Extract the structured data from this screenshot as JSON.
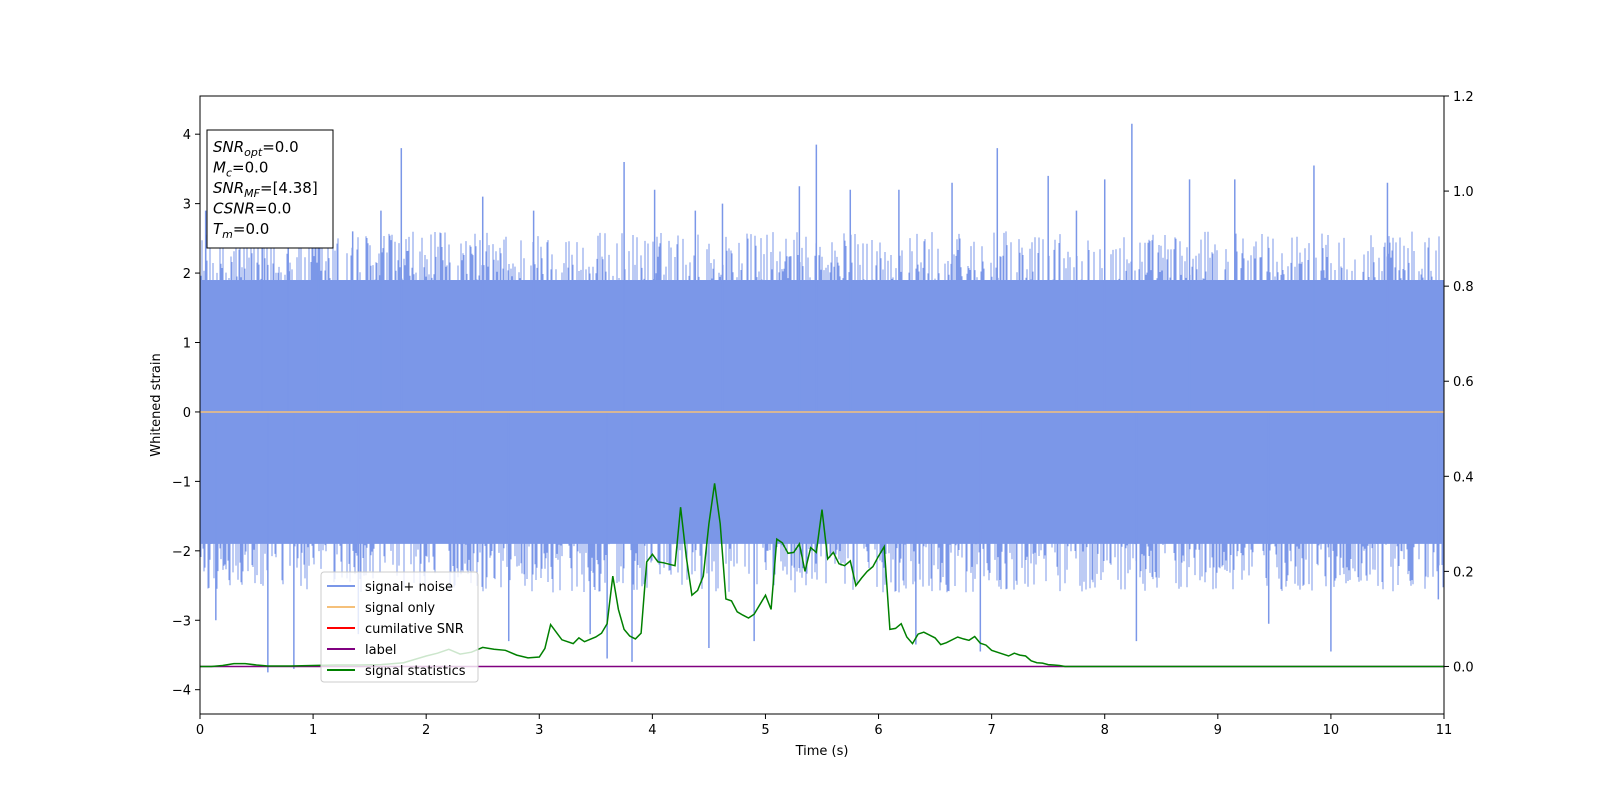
{
  "chart_data": {
    "type": "line",
    "xlabel": "Time (s)",
    "ylabel": "Whitened strain",
    "xlim": [
      0,
      11
    ],
    "ylim": [
      -4.35,
      4.55
    ],
    "ylim_right": [
      -0.1,
      1.2
    ],
    "x_ticks": [
      0,
      1,
      2,
      3,
      4,
      5,
      6,
      7,
      8,
      9,
      10,
      11
    ],
    "y_ticks": [
      -4,
      -3,
      -2,
      -1,
      0,
      1,
      2,
      3,
      4
    ],
    "y_ticks_right": [
      0.0,
      0.2,
      0.4,
      0.6,
      0.8,
      1.0,
      1.2
    ],
    "grid": false,
    "legend_position": "lower-left",
    "annotation_lines": [
      {
        "main": "SNR",
        "sub": "opt",
        "value": "=0.0"
      },
      {
        "main": "M",
        "sub": "c",
        "value": "=0.0"
      },
      {
        "main": "SNR",
        "sub": "MF",
        "value": "=[4.38]"
      },
      {
        "main": "CSNR",
        "sub": "",
        "value": "=0.0"
      },
      {
        "main": "T",
        "sub": "m",
        "value": "=0.0"
      }
    ],
    "series": [
      {
        "name": "signal+ noise",
        "color": "#7b97e8",
        "axis": "left",
        "kind": "noise",
        "baseline": 0,
        "typical_range": [
          -1.9,
          1.9
        ],
        "max": 4.15,
        "min": -3.75,
        "peaks": [
          [
            0.05,
            2.9
          ],
          [
            0.14,
            -3.0
          ],
          [
            0.55,
            2.5
          ],
          [
            0.6,
            -3.75
          ],
          [
            0.78,
            2.95
          ],
          [
            0.83,
            -3.7
          ],
          [
            1.05,
            2.6
          ],
          [
            1.35,
            2.6
          ],
          [
            1.4,
            -3.2
          ],
          [
            1.6,
            2.9
          ],
          [
            1.78,
            3.8
          ],
          [
            2.25,
            -2.5
          ],
          [
            2.5,
            3.1
          ],
          [
            2.73,
            -3.3
          ],
          [
            2.95,
            2.9
          ],
          [
            3.45,
            -3.2
          ],
          [
            3.6,
            -3.55
          ],
          [
            3.75,
            3.6
          ],
          [
            3.82,
            -3.6
          ],
          [
            4.02,
            3.2
          ],
          [
            4.38,
            2.9
          ],
          [
            4.5,
            -3.4
          ],
          [
            4.62,
            3.0
          ],
          [
            4.9,
            -3.3
          ],
          [
            5.3,
            3.25
          ],
          [
            5.45,
            3.85
          ],
          [
            5.75,
            3.2
          ],
          [
            6.18,
            3.2
          ],
          [
            6.33,
            -3.35
          ],
          [
            6.65,
            3.3
          ],
          [
            6.9,
            -3.45
          ],
          [
            7.05,
            3.8
          ],
          [
            7.5,
            3.4
          ],
          [
            7.75,
            2.9
          ],
          [
            8.0,
            3.35
          ],
          [
            8.24,
            4.15
          ],
          [
            8.28,
            -3.3
          ],
          [
            8.75,
            3.35
          ],
          [
            9.15,
            3.35
          ],
          [
            9.45,
            -3.05
          ],
          [
            9.85,
            3.55
          ],
          [
            10.0,
            -3.45
          ],
          [
            10.5,
            3.3
          ],
          [
            10.95,
            -2.7
          ]
        ]
      },
      {
        "name": "signal only",
        "color": "#f5c07a",
        "axis": "left",
        "x": [
          0,
          11
        ],
        "y": [
          0,
          0
        ]
      },
      {
        "name": "cumilative SNR",
        "color": "#ff0000",
        "axis": "right",
        "x": [],
        "y": []
      },
      {
        "name": "label",
        "color": "#800080",
        "axis": "right",
        "x": [
          0,
          11
        ],
        "y": [
          0,
          0
        ]
      },
      {
        "name": "signal statistics",
        "color": "#008000",
        "axis": "right",
        "x": [
          0,
          0.1,
          0.2,
          0.3,
          0.4,
          0.5,
          0.6,
          0.8,
          1.0,
          1.2,
          1.4,
          1.6,
          1.8,
          2.0,
          2.1,
          2.2,
          2.3,
          2.4,
          2.5,
          2.6,
          2.7,
          2.8,
          2.9,
          3.0,
          3.05,
          3.1,
          3.2,
          3.3,
          3.35,
          3.4,
          3.5,
          3.55,
          3.6,
          3.65,
          3.7,
          3.75,
          3.8,
          3.85,
          3.9,
          3.95,
          4.0,
          4.05,
          4.1,
          4.2,
          4.25,
          4.3,
          4.35,
          4.4,
          4.45,
          4.5,
          4.55,
          4.6,
          4.65,
          4.7,
          4.75,
          4.8,
          4.85,
          4.9,
          5.0,
          5.05,
          5.1,
          5.15,
          5.2,
          5.25,
          5.3,
          5.35,
          5.4,
          5.45,
          5.5,
          5.55,
          5.6,
          5.65,
          5.7,
          5.75,
          5.8,
          5.85,
          5.9,
          5.95,
          6.0,
          6.05,
          6.1,
          6.15,
          6.2,
          6.25,
          6.3,
          6.35,
          6.4,
          6.5,
          6.55,
          6.6,
          6.7,
          6.75,
          6.8,
          6.85,
          6.9,
          6.95,
          7.0,
          7.1,
          7.15,
          7.2,
          7.25,
          7.3,
          7.35,
          7.4,
          7.45,
          7.5,
          7.55,
          7.6,
          7.65,
          7.7,
          7.75,
          7.8,
          7.85,
          7.9,
          7.95,
          8.0,
          8.05,
          8.1,
          8.2,
          8.3,
          8.5,
          8.8,
          9.2,
          11
        ],
        "y": [
          0.0,
          0.0,
          0.002,
          0.006,
          0.006,
          0.003,
          0.001,
          0.001,
          0.002,
          0.003,
          0.003,
          0.004,
          0.008,
          0.022,
          0.028,
          0.036,
          0.026,
          0.03,
          0.04,
          0.036,
          0.034,
          0.024,
          0.018,
          0.02,
          0.038,
          0.088,
          0.056,
          0.048,
          0.06,
          0.052,
          0.062,
          0.07,
          0.09,
          0.19,
          0.12,
          0.078,
          0.064,
          0.058,
          0.07,
          0.22,
          0.236,
          0.22,
          0.218,
          0.212,
          0.335,
          0.23,
          0.15,
          0.16,
          0.19,
          0.3,
          0.385,
          0.3,
          0.142,
          0.138,
          0.115,
          0.108,
          0.102,
          0.11,
          0.15,
          0.12,
          0.268,
          0.26,
          0.238,
          0.24,
          0.258,
          0.2,
          0.25,
          0.24,
          0.33,
          0.226,
          0.24,
          0.216,
          0.212,
          0.222,
          0.17,
          0.186,
          0.2,
          0.21,
          0.232,
          0.252,
          0.078,
          0.08,
          0.09,
          0.062,
          0.048,
          0.068,
          0.072,
          0.06,
          0.046,
          0.05,
          0.062,
          0.058,
          0.055,
          0.063,
          0.049,
          0.045,
          0.034,
          0.026,
          0.022,
          0.028,
          0.024,
          0.022,
          0.012,
          0.008,
          0.007,
          0.004,
          0.003,
          0.002,
          0.0,
          0.0,
          0.0,
          0.0,
          0.0,
          0.0,
          0.0,
          0.0,
          0.0,
          0.0,
          0.0,
          0.0,
          0.0,
          0.0,
          0.0,
          0.0
        ]
      }
    ]
  }
}
